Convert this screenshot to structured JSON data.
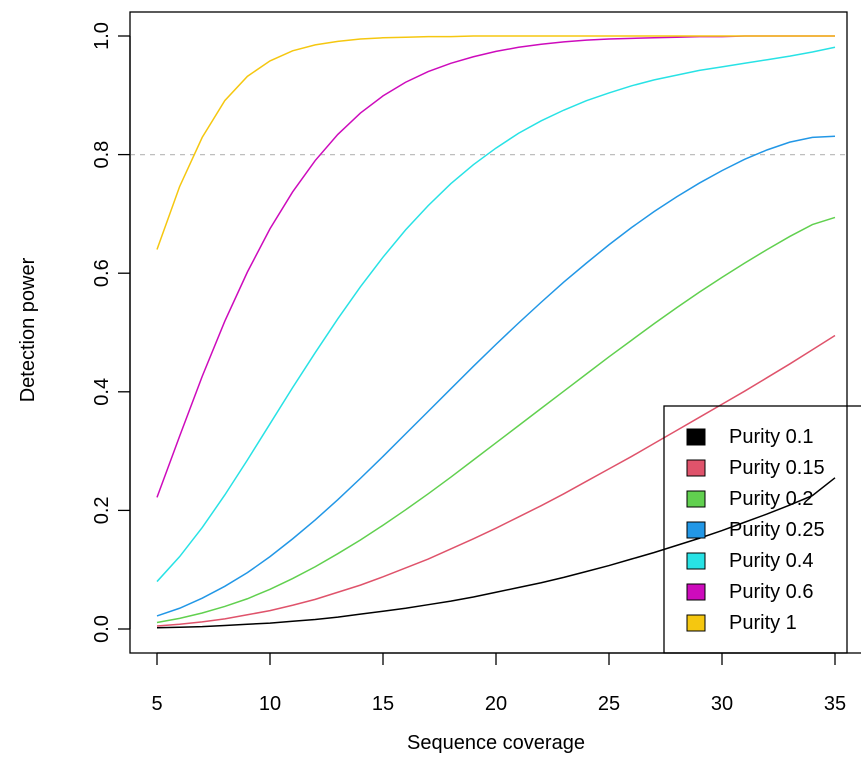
{
  "chart_data": {
    "type": "line",
    "xlabel": "Sequence coverage",
    "ylabel": "Detection power",
    "xlim": [
      5,
      35
    ],
    "ylim": [
      0,
      1
    ],
    "x_ticks": [
      "5",
      "10",
      "15",
      "20",
      "25",
      "30",
      "35"
    ],
    "y_ticks": [
      "0.0",
      "0.2",
      "0.4",
      "0.6",
      "0.8",
      "1.0"
    ],
    "reference_line": {
      "y": 0.8,
      "color": "#bebebe",
      "style": "dashed"
    },
    "legend_position": "bottom-right",
    "x": [
      5,
      6,
      7,
      8,
      9,
      10,
      11,
      12,
      13,
      14,
      15,
      16,
      17,
      18,
      19,
      20,
      21,
      22,
      23,
      24,
      25,
      26,
      27,
      28,
      29,
      30,
      31,
      32,
      33,
      34,
      35
    ],
    "series": [
      {
        "name": "Purity 0.1",
        "color": "#000000",
        "values": [
          0.002,
          0.003,
          0.004,
          0.006,
          0.008,
          0.01,
          0.013,
          0.016,
          0.02,
          0.025,
          0.03,
          0.035,
          0.041,
          0.047,
          0.054,
          0.062,
          0.07,
          0.078,
          0.087,
          0.097,
          0.107,
          0.118,
          0.129,
          0.141,
          0.153,
          0.166,
          0.18,
          0.194,
          0.209,
          0.225,
          0.255
        ]
      },
      {
        "name": "Purity 0.15",
        "color": "#df536b",
        "values": [
          0.005,
          0.008,
          0.012,
          0.017,
          0.024,
          0.031,
          0.04,
          0.05,
          0.062,
          0.074,
          0.088,
          0.103,
          0.118,
          0.135,
          0.152,
          0.17,
          0.189,
          0.208,
          0.228,
          0.249,
          0.27,
          0.291,
          0.313,
          0.335,
          0.357,
          0.379,
          0.401,
          0.424,
          0.447,
          0.471,
          0.495
        ]
      },
      {
        "name": "Purity 0.2",
        "color": "#61d04f",
        "values": [
          0.011,
          0.018,
          0.027,
          0.038,
          0.051,
          0.067,
          0.085,
          0.105,
          0.127,
          0.15,
          0.175,
          0.201,
          0.228,
          0.256,
          0.285,
          0.314,
          0.343,
          0.372,
          0.401,
          0.43,
          0.459,
          0.487,
          0.515,
          0.542,
          0.568,
          0.593,
          0.617,
          0.64,
          0.662,
          0.682,
          0.694
        ]
      },
      {
        "name": "Purity 0.25",
        "color": "#2297e6",
        "values": [
          0.022,
          0.035,
          0.052,
          0.072,
          0.095,
          0.122,
          0.152,
          0.184,
          0.218,
          0.254,
          0.291,
          0.329,
          0.367,
          0.405,
          0.443,
          0.48,
          0.516,
          0.551,
          0.585,
          0.617,
          0.648,
          0.677,
          0.704,
          0.729,
          0.752,
          0.773,
          0.792,
          0.808,
          0.821,
          0.829,
          0.831
        ]
      },
      {
        "name": "Purity 0.4",
        "color": "#28e2e5",
        "values": [
          0.08,
          0.122,
          0.171,
          0.226,
          0.285,
          0.346,
          0.407,
          0.466,
          0.523,
          0.577,
          0.627,
          0.673,
          0.714,
          0.751,
          0.783,
          0.811,
          0.836,
          0.857,
          0.875,
          0.891,
          0.904,
          0.916,
          0.926,
          0.934,
          0.942,
          0.948,
          0.954,
          0.96,
          0.966,
          0.973,
          0.981
        ]
      },
      {
        "name": "Purity 0.6",
        "color": "#cd0bbc",
        "values": [
          0.222,
          0.325,
          0.426,
          0.519,
          0.602,
          0.675,
          0.737,
          0.79,
          0.834,
          0.87,
          0.899,
          0.922,
          0.94,
          0.954,
          0.965,
          0.974,
          0.981,
          0.986,
          0.99,
          0.993,
          0.995,
          0.996,
          0.997,
          0.998,
          0.999,
          0.999,
          1.0,
          1.0,
          1.0,
          1.0,
          1.0
        ]
      },
      {
        "name": "Purity 1",
        "color": "#f5c710",
        "values": [
          0.64,
          0.746,
          0.829,
          0.891,
          0.932,
          0.958,
          0.975,
          0.985,
          0.991,
          0.995,
          0.997,
          0.998,
          0.999,
          0.999,
          1.0,
          1.0,
          1.0,
          1.0,
          1.0,
          1.0,
          1.0,
          1.0,
          1.0,
          1.0,
          1.0,
          1.0,
          1.0,
          1.0,
          1.0,
          1.0,
          1.0
        ]
      }
    ]
  }
}
